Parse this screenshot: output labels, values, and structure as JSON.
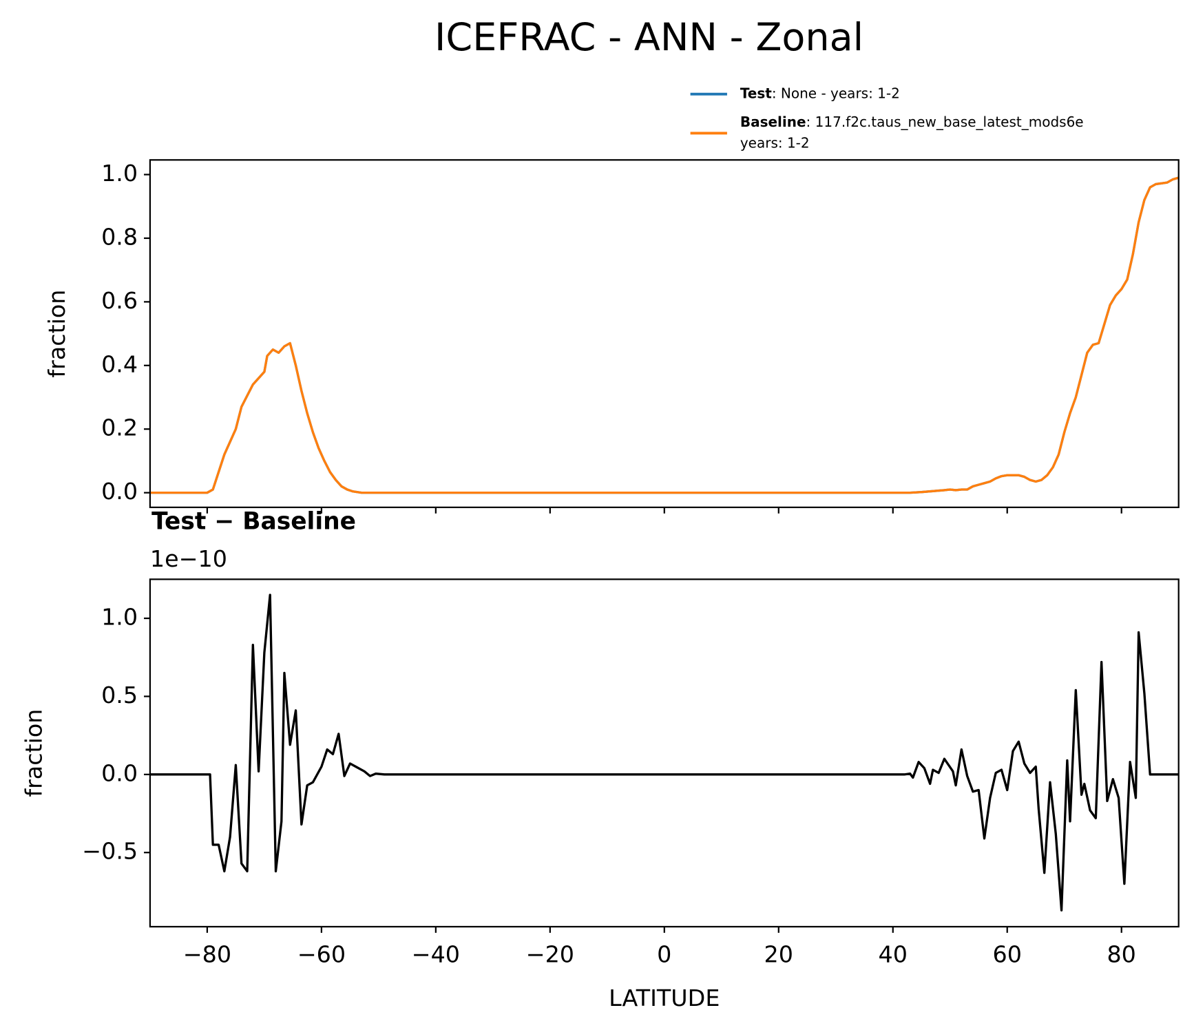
{
  "title": "ICEFRAC - ANN - Zonal",
  "chart_data": [
    {
      "type": "line",
      "ylabel": "fraction",
      "xlim": [
        -90,
        90
      ],
      "ylim": [
        -0.046,
        1.046
      ],
      "xticks": [
        -80,
        -60,
        -40,
        -20,
        0,
        20,
        40,
        60,
        80
      ],
      "show_xtick_labels": false,
      "yticks": [
        {
          "value": 0,
          "label": "0.0"
        },
        0.2,
        0.4,
        0.6,
        0.8,
        {
          "value": 1,
          "label": "1.0"
        }
      ],
      "x": [
        -90,
        -80,
        -79,
        -77,
        -75,
        -74,
        -72,
        -70,
        -69.5,
        -68.5,
        -67.5,
        -66.5,
        -65.5,
        -64.5,
        -63.5,
        -62.5,
        -61.5,
        -60.5,
        -59.5,
        -58.5,
        -57.5,
        -56.5,
        -55.5,
        -54.5,
        -53,
        43,
        45,
        47,
        49,
        50,
        51,
        52,
        53,
        54,
        55,
        56,
        57,
        58,
        59,
        60,
        61,
        62,
        63,
        64,
        65,
        66,
        67,
        68,
        69,
        70,
        71,
        72,
        73,
        74,
        75,
        76,
        77,
        78,
        79,
        80,
        81,
        82,
        83,
        84,
        85,
        86,
        88,
        89,
        90
      ],
      "series": [
        {
          "name": "Test",
          "detail": [
            ": None - years: 1-2"
          ],
          "color": "#1f77b4",
          "values": [
            0,
            0,
            0.01,
            0.12,
            0.2,
            0.27,
            0.34,
            0.38,
            0.43,
            0.45,
            0.44,
            0.46,
            0.47,
            0.4,
            0.32,
            0.25,
            0.19,
            0.14,
            0.1,
            0.065,
            0.04,
            0.02,
            0.01,
            0.004,
            0,
            0,
            0.002,
            0.005,
            0.008,
            0.01,
            0.008,
            0.01,
            0.01,
            0.02,
            0.025,
            0.03,
            0.035,
            0.045,
            0.052,
            0.055,
            0.055,
            0.055,
            0.05,
            0.04,
            0.035,
            0.04,
            0.055,
            0.08,
            0.12,
            0.19,
            0.25,
            0.3,
            0.37,
            0.44,
            0.465,
            0.47,
            0.53,
            0.59,
            0.62,
            0.64,
            0.67,
            0.75,
            0.85,
            0.92,
            0.96,
            0.97,
            0.975,
            0.985,
            0.99
          ]
        },
        {
          "name": "Baseline",
          "detail": [
            ": 117.f2c.taus_new_base_latest_mods6e",
            "years: 1-2"
          ],
          "color": "#ff7f0e",
          "values": [
            0,
            0,
            0.01,
            0.12,
            0.2,
            0.27,
            0.34,
            0.38,
            0.43,
            0.45,
            0.44,
            0.46,
            0.47,
            0.4,
            0.32,
            0.25,
            0.19,
            0.14,
            0.1,
            0.065,
            0.04,
            0.02,
            0.01,
            0.004,
            0,
            0,
            0.002,
            0.005,
            0.008,
            0.01,
            0.008,
            0.01,
            0.01,
            0.02,
            0.025,
            0.03,
            0.035,
            0.045,
            0.052,
            0.055,
            0.055,
            0.055,
            0.05,
            0.04,
            0.035,
            0.04,
            0.055,
            0.08,
            0.12,
            0.19,
            0.25,
            0.3,
            0.37,
            0.44,
            0.465,
            0.47,
            0.53,
            0.59,
            0.62,
            0.64,
            0.67,
            0.75,
            0.85,
            0.92,
            0.96,
            0.97,
            0.975,
            0.985,
            0.99
          ]
        }
      ]
    },
    {
      "type": "line",
      "title": "Test − Baseline",
      "offset_label": "1e−10",
      "ylabel": "fraction",
      "xlabel": "LATITUDE",
      "xlim": [
        -90,
        90
      ],
      "ylim": [
        -0.975,
        1.25
      ],
      "xticks": [
        {
          "value": -80,
          "label": "−80"
        },
        {
          "value": -60,
          "label": "−60"
        },
        {
          "value": -40,
          "label": "−40"
        },
        {
          "value": -20,
          "label": "−20"
        },
        0,
        20,
        40,
        60,
        80
      ],
      "show_xtick_labels": true,
      "yticks": [
        {
          "value": -0.5,
          "label": "−0.5"
        },
        {
          "value": 0,
          "label": "0.0"
        },
        0.5,
        {
          "value": 1,
          "label": "1.0"
        }
      ],
      "x": [
        -90,
        -79.5,
        -79,
        -78,
        -77,
        -76,
        -75,
        -74,
        -73,
        -72,
        -71,
        -70,
        -69,
        -68,
        -67,
        -66.5,
        -65.5,
        -64.5,
        -63.5,
        -62.5,
        -61.5,
        -60,
        -59,
        -58,
        -57,
        -56,
        -55,
        -54,
        -52.5,
        -51.5,
        -50.5,
        -49,
        42,
        43,
        43.5,
        44.5,
        45.5,
        46.5,
        47,
        48,
        49,
        50.5,
        51,
        52,
        53,
        54,
        55,
        56,
        57,
        58,
        59,
        60,
        61,
        62,
        63,
        64,
        65,
        65.5,
        66.5,
        67.5,
        68.5,
        69.5,
        70.5,
        71,
        72,
        73,
        73.5,
        74.5,
        75.5,
        76.5,
        77.5,
        78.5,
        79.5,
        80.5,
        81.5,
        82.5,
        83,
        84,
        85,
        90
      ],
      "series": [
        {
          "color": "#000000",
          "values": [
            0,
            0,
            -0.45,
            -0.45,
            -0.62,
            -0.4,
            0.06,
            -0.57,
            -0.62,
            0.83,
            0.02,
            0.78,
            1.15,
            -0.62,
            -0.3,
            0.65,
            0.19,
            0.41,
            -0.32,
            -0.07,
            -0.05,
            0.05,
            0.16,
            0.13,
            0.26,
            -0.01,
            0.07,
            0.05,
            0.02,
            -0.01,
            0.005,
            0,
            0,
            0.005,
            -0.02,
            0.08,
            0.04,
            -0.06,
            0.03,
            0.01,
            0.1,
            0.02,
            -0.07,
            0.16,
            -0.01,
            -0.11,
            -0.1,
            -0.41,
            -0.15,
            0.01,
            0.03,
            -0.1,
            0.15,
            0.21,
            0.07,
            0.01,
            0.05,
            -0.22,
            -0.63,
            -0.05,
            -0.38,
            -0.87,
            0.09,
            -0.3,
            0.54,
            -0.13,
            -0.06,
            -0.23,
            -0.28,
            0.72,
            -0.17,
            -0.03,
            -0.15,
            -0.7,
            0.08,
            -0.15,
            0.91,
            0.52,
            0,
            0
          ]
        }
      ]
    }
  ]
}
